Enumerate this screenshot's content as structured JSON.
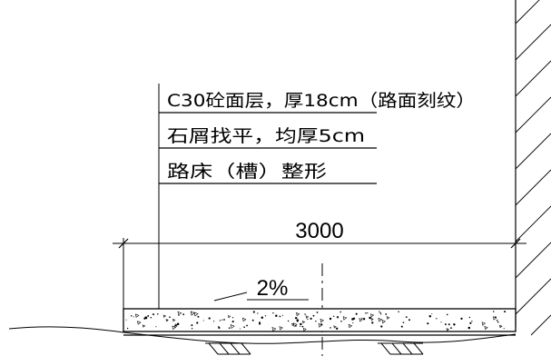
{
  "layers": [
    {
      "label": "C30砼面层，厚18cm（路面刻纹）"
    },
    {
      "label": "石屑找平，均厚5cm"
    },
    {
      "label": "路床（槽）整形"
    }
  ],
  "dimension": {
    "value": "3000"
  },
  "slope": {
    "label": "2%"
  }
}
